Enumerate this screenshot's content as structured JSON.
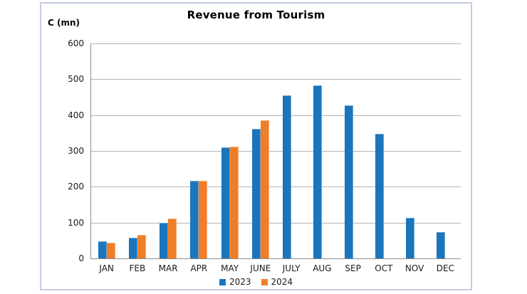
{
  "chart_data": {
    "type": "bar",
    "title": "Revenue from Tourism",
    "y_axis_label": "C (mn)",
    "xlabel": "",
    "ylabel": "C (mn)",
    "categories": [
      "JAN",
      "FEB",
      "MAR",
      "APR",
      "MAY",
      "JUNE",
      "JULY",
      "AUG",
      "SEP",
      "OCT",
      "NOV",
      "DEC"
    ],
    "series": [
      {
        "name": "2023",
        "color": "#1b75bc",
        "values": [
          47,
          57,
          100,
          216,
          310,
          361,
          455,
          483,
          428,
          347,
          114,
          74
        ]
      },
      {
        "name": "2024",
        "color": "#f07e27",
        "values": [
          44,
          65,
          112,
          217,
          311,
          385,
          null,
          null,
          null,
          null,
          null,
          null
        ]
      }
    ],
    "ylim": [
      0,
      600
    ],
    "ytick_step": 100,
    "ytick_labels": [
      "0",
      "100",
      "200",
      "300",
      "400",
      "500",
      "600"
    ],
    "grid": true,
    "legend_position": "bottom"
  },
  "colors": {
    "frame_border": "#c3cce3",
    "gridline": "#b3b3b3",
    "axis_line": "#8c8c8c",
    "label_text": "#1a1a1a",
    "background": "#ffffff"
  }
}
